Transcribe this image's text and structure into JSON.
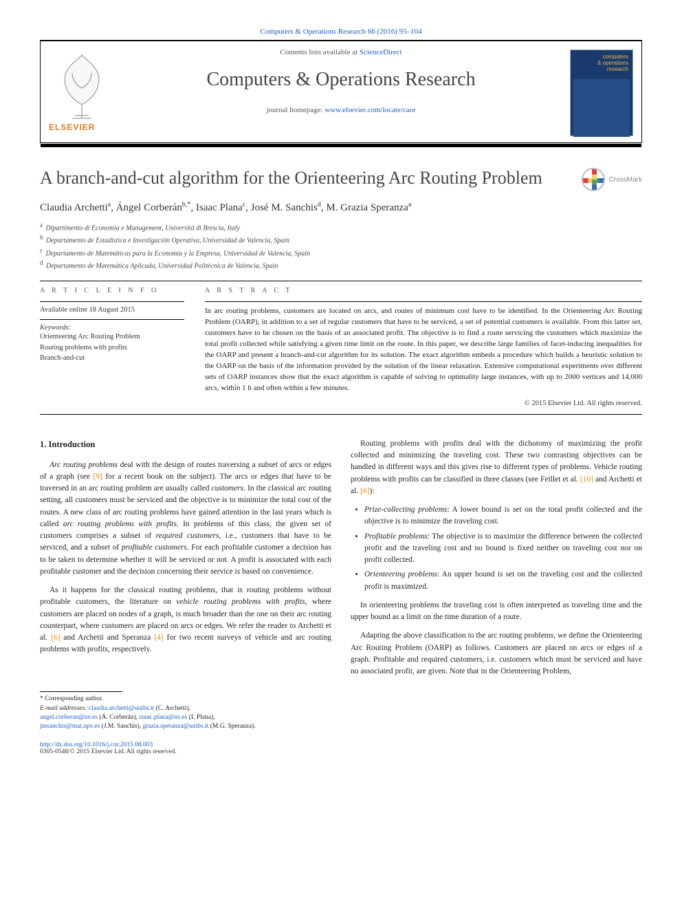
{
  "citation": {
    "journal_link_text": "Computers & Operations Research 66 (2016) 95–104"
  },
  "masthead": {
    "contents_prefix": "Contents lists available at ",
    "contents_link": "ScienceDirect",
    "journal_title": "Computers & Operations Research",
    "homepage_prefix": "journal homepage: ",
    "homepage_url": "www.elsevier.com/locate/caor",
    "publisher_name": "ELSEVIER",
    "cover_text1": "computers",
    "cover_text2": "& operations",
    "cover_text3": "research"
  },
  "crossmark_label": "CrossMark",
  "article": {
    "title": "A branch-and-cut algorithm for the Orienteering Arc Routing Problem",
    "authors_html": "Claudia Archetti<sup>a</sup>, Ángel Corberán<sup>b,*</sup>, Isaac Plana<sup>c</sup>, José M. Sanchis<sup>d</sup>, M. Grazia Speranza<sup>a</sup>",
    "affiliations": [
      {
        "sup": "a",
        "text": "Dipartimento di Economia e Management, Universitá di Brescia, Italy"
      },
      {
        "sup": "b",
        "text": "Departamento de Estadística e Investigación Operativa, Universidad de Valencia, Spain"
      },
      {
        "sup": "c",
        "text": "Departamento de Matemáticas para la Economía y la Empresa, Universidad de Valencia, Spain"
      },
      {
        "sup": "d",
        "text": "Departamento de Matemática Aplicada, Universidad Politécnica de Valencia, Spain"
      }
    ]
  },
  "info": {
    "label": "A R T I C L E  I N F O",
    "available": "Available online 18 August 2015",
    "kw_head": "Keywords:",
    "keywords": [
      "Orienteering Arc Routing Problem",
      "Routing problems with profits",
      "Branch-and-cut"
    ]
  },
  "abstract": {
    "label": "A B S T R A C T",
    "text": "In arc routing problems, customers are located on arcs, and routes of minimum cost have to be identified. In the Orienteering Arc Routing Problem (OARP), in addition to a set of regular customers that have to be serviced, a set of potential customers is available. From this latter set, customers have to be chosen on the basis of an associated profit. The objective is to find a route servicing the customers which maximize the total profit collected while satisfying a given time limit on the route. In this paper, we describe large families of facet-inducing inequalities for the OARP and present a branch-and-cut algorithm for its solution. The exact algorithm embeds a procedure which builds a heuristic solution to the OARP on the basis of the information provided by the solution of the linear relaxation. Extensive computational experiments over different sets of OARP instances show that the exact algorithm is capable of solving to optimality large instances, with up to 2000 vertices and 14,000 arcs, within 1 h and often within a few minutes.",
    "copyright": "© 2015 Elsevier Ltd. All rights reserved."
  },
  "body": {
    "h_intro": "1.  Introduction",
    "p1a": "Arc routing problems",
    "p1b": " deal with the design of routes traversing a subset of arcs or edges of a graph (see ",
    "p1c": "[9]",
    "p1d": " for a recent book on the subject). The arcs or edges that have to be traversed in an arc routing problem are usually called ",
    "p1e": "customers",
    "p1f": ". In the classical arc routing setting, all customers must be serviced and the objective is to minimize the total cost of the routes. A new class of arc routing problems have gained attention in the last years which is called ",
    "p1g": "arc routing problems with profits",
    "p1h": ". In problems of this class, the given set of customers comprises a subset of ",
    "p1i": "required customers",
    "p1j": ", i.e., customers that have to be serviced, and a subset of ",
    "p1k": "profitable customers",
    "p1l": ". For each profitable customer a decision has to be taken to determine whether it will be serviced or not. A profit is associated with each profitable customer and the decision concerning their service is based on convenience.",
    "p2a": "As it happens for the classical routing problems, that is routing problems without profitable customers, the literature on ",
    "p2b": "vehicle routing problems with profits",
    "p2c": ", where customers are placed on nodes of a graph, is much broader than the one on their arc routing counterpart, where customers are placed on arcs or edges. We refer ",
    "p2d": "the reader to Archetti et al. ",
    "p2e": "[6]",
    "p2f": " and Archetti and Speranza ",
    "p2g": "[4]",
    "p2h": " for two recent surveys of vehicle and arc routing problems with profits, respectively.",
    "p3a": "Routing problems with profits deal with the dichotomy of maximizing the profit collected and minimizing the traveling cost. These two contrasting objectives can be handled in different ways and this gives rise to different types of problems. Vehicle routing problems with profits can be classified in three classes (see Feillet et al. ",
    "p3b": "[10]",
    "p3c": " and Archetti et al. ",
    "p3d": "[6]",
    "p3e": "):",
    "li1a": "Prize-collecting problems",
    "li1b": ": A lower bound is set on the total profit collected and the objective is to minimize the traveling cost.",
    "li2a": "Profitable problems",
    "li2b": ": The objective is to maximize the difference between the collected profit and the traveling cost and no bound is fixed neither on traveling cost nor on profit collected.",
    "li3a": "Orienteering problems",
    "li3b": ": An upper bound is set on the traveling cost and the collected profit is maximized.",
    "p4": "In orienteering problems the traveling cost is often interpreted as traveling time and the upper bound as a limit on the time duration of a route.",
    "p5": "Adapting the above classification to the arc routing problems, we define the Orienteering Arc Routing Problem (OARP) as follows. Customers are placed on arcs or edges of a graph. Profitable and required customers, i.e. customers which must be serviced and have no associated profit, are given. Note that in the Orienteering Problem,"
  },
  "footnotes": {
    "corr": "* Corresponding author.",
    "email_label": "E-mail addresses: ",
    "e1": "claudia.archetti@unibs.it",
    "n1": " (C. Archetti),",
    "e2": "angel.corberan@uv.es",
    "n2": " (Á. Corberán), ",
    "e3": "isaac.plana@uv.es",
    "n3": " (I. Plana),",
    "e4": "jmsanchis@mat.upv.es",
    "n4": " (J.M. Sanchis), ",
    "e5": "grazia.speranza@unibs.it",
    "n5": " (M.G. Speranza)."
  },
  "doi": {
    "url": "http://dx.doi.org/10.1016/j.cor.2015.08.003",
    "issn_line": "0305-0548/© 2015 Elsevier Ltd. All rights reserved."
  },
  "colors": {
    "link": "#1a5cc8",
    "cite": "#e68a00",
    "elsevier": "#e67817",
    "cover_bg": "#1a3a6b",
    "cover_text": "#e6b24a"
  }
}
